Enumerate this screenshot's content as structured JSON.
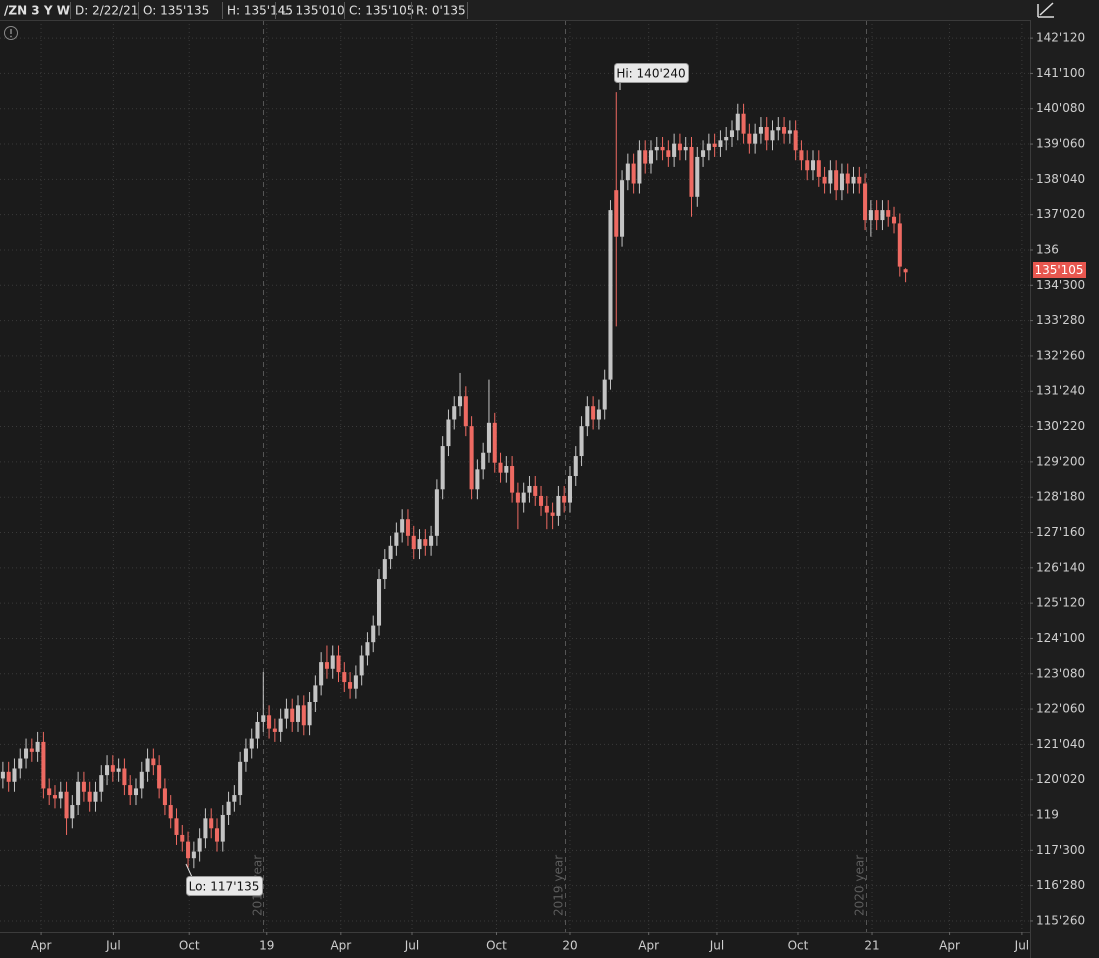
{
  "chart_data": {
    "type": "candlestick",
    "header": {
      "symbol": "/ZN 3 Y W",
      "date": "D: 2/22/21",
      "open": "O: 135'135",
      "high": "H: 135'145",
      "low": "L: 135'010",
      "close": "C: 135'105",
      "range": "R: 0'135"
    },
    "annotations": {
      "hi": "Hi: 140'240",
      "lo": "Lo: 117'135",
      "last": "135'105",
      "year_2018": "2018 year",
      "year_2019": "2019 year",
      "year_2020": "2020 year"
    },
    "up_color": "#c4c4c4",
    "down_color": "#ee6a62",
    "grid": true,
    "categories": [
      null,
      null,
      null,
      null,
      null,
      null,
      null,
      null,
      null,
      null,
      null,
      null,
      null,
      null,
      null,
      null,
      null,
      null,
      null,
      null,
      null,
      null,
      null,
      null,
      null,
      null,
      null,
      null,
      null,
      null,
      null,
      null,
      null,
      null,
      null,
      null,
      null,
      null,
      null,
      null,
      null,
      null,
      null,
      null,
      null,
      null,
      null,
      null,
      null,
      null,
      null,
      null,
      null,
      null,
      null,
      null,
      null,
      null,
      null,
      null,
      null,
      null,
      null,
      null,
      null,
      null,
      null,
      null,
      null,
      null,
      null,
      null,
      null,
      null,
      null,
      null,
      null,
      null,
      null,
      null,
      null,
      null,
      null,
      null,
      null,
      null,
      null,
      null,
      null,
      null,
      null,
      null,
      null,
      null,
      null,
      null,
      null,
      null,
      null,
      null,
      null,
      null,
      null,
      null,
      null,
      null,
      null,
      null,
      null,
      null,
      null,
      null,
      null,
      null,
      null,
      null,
      null,
      null,
      null,
      null,
      null,
      null,
      null,
      null,
      null,
      null,
      null,
      null,
      null,
      null,
      null,
      null,
      null,
      null,
      null,
      null,
      null,
      null,
      null,
      null,
      null,
      null,
      null,
      null,
      null,
      null,
      null,
      null,
      null,
      null,
      null,
      null,
      null,
      null,
      null,
      null,
      null
    ],
    "open": [
      120.1,
      120.3,
      120.0,
      120.4,
      120.7,
      121.0,
      120.9,
      121.2,
      119.8,
      119.6,
      119.5,
      119.7,
      118.9,
      119.3,
      120.0,
      119.7,
      119.4,
      119.7,
      120.2,
      120.5,
      120.3,
      120.4,
      119.9,
      119.6,
      119.8,
      120.3,
      120.7,
      120.5,
      119.8,
      119.3,
      118.9,
      118.4,
      118.2,
      117.7,
      117.9,
      118.3,
      118.9,
      118.6,
      118.2,
      119.0,
      119.4,
      119.6,
      120.6,
      121.0,
      121.3,
      121.8,
      122.0,
      121.6,
      121.5,
      121.9,
      122.2,
      121.8,
      122.3,
      121.7,
      122.4,
      122.9,
      123.6,
      123.4,
      123.8,
      123.3,
      123.0,
      122.8,
      123.2,
      123.8,
      124.2,
      124.7,
      126.1,
      126.7,
      127.1,
      127.5,
      127.9,
      127.4,
      127.0,
      127.3,
      127.1,
      127.4,
      128.8,
      130.1,
      130.9,
      131.3,
      131.6,
      130.7,
      128.8,
      129.4,
      129.9,
      130.8,
      129.6,
      129.3,
      129.5,
      128.7,
      128.4,
      128.7,
      128.9,
      128.6,
      128.3,
      128.1,
      128.0,
      128.6,
      128.4,
      129.2,
      129.8,
      130.7,
      131.3,
      130.9,
      131.2,
      132.1,
      137.8,
      136.4,
      138.1,
      138.6,
      138.0,
      139.0,
      138.6,
      139.0,
      139.1,
      139.0,
      138.8,
      139.2,
      139.0,
      139.1,
      137.6,
      138.8,
      139.0,
      139.2,
      139.1,
      139.3,
      139.4,
      139.6,
      140.1,
      139.5,
      139.2,
      139.5,
      139.7,
      139.3,
      139.6,
      139.7,
      139.5,
      139.6,
      139.0,
      138.7,
      138.4,
      138.7,
      138.2,
      138.0,
      138.4,
      137.8,
      138.3,
      138.0,
      138.2,
      138.0,
      136.9,
      137.2,
      136.9,
      137.2,
      137.0,
      136.8,
      135.422
    ],
    "high": [
      120.6,
      120.6,
      120.7,
      121.0,
      121.3,
      121.3,
      121.5,
      121.5,
      120.1,
      119.9,
      120.0,
      120.0,
      119.6,
      120.3,
      120.3,
      120.0,
      120.0,
      120.5,
      120.8,
      120.8,
      120.7,
      120.7,
      120.2,
      120.1,
      120.6,
      121.0,
      121.0,
      120.8,
      120.1,
      119.6,
      119.2,
      118.7,
      118.5,
      118.2,
      118.6,
      119.2,
      119.2,
      118.9,
      119.3,
      119.7,
      119.9,
      120.9,
      121.3,
      121.6,
      122.1,
      123.3,
      122.3,
      121.9,
      122.2,
      122.5,
      122.5,
      122.6,
      122.6,
      122.7,
      123.2,
      123.9,
      124.1,
      124.1,
      124.1,
      123.6,
      123.3,
      123.5,
      124.1,
      124.5,
      125.0,
      126.4,
      127.0,
      127.4,
      127.8,
      128.2,
      128.2,
      127.7,
      127.6,
      127.6,
      127.7,
      129.1,
      130.4,
      131.2,
      131.6,
      132.3,
      131.9,
      131.0,
      129.7,
      130.2,
      132.1,
      131.1,
      129.9,
      129.8,
      129.8,
      129.0,
      129.0,
      129.2,
      129.2,
      128.9,
      128.6,
      128.4,
      128.9,
      128.9,
      129.5,
      130.1,
      131.0,
      131.6,
      131.6,
      131.5,
      132.4,
      137.5,
      140.75,
      138.4,
      138.9,
      138.9,
      139.3,
      139.3,
      139.3,
      139.4,
      139.4,
      139.3,
      139.5,
      139.5,
      139.4,
      139.4,
      139.1,
      139.3,
      139.5,
      139.5,
      139.6,
      139.7,
      139.9,
      140.4,
      140.4,
      139.8,
      139.8,
      140.0,
      140.0,
      139.9,
      140.0,
      140.0,
      139.9,
      139.9,
      139.3,
      139.0,
      139.0,
      139.0,
      138.5,
      138.7,
      138.7,
      138.6,
      138.6,
      138.5,
      138.5,
      138.3,
      137.5,
      137.5,
      137.5,
      137.5,
      137.3,
      137.1,
      135.453
    ],
    "low": [
      119.8,
      119.7,
      119.7,
      120.1,
      120.4,
      120.6,
      120.6,
      119.5,
      119.3,
      119.2,
      119.2,
      118.4,
      118.6,
      119.0,
      119.4,
      119.1,
      119.1,
      119.4,
      119.9,
      120.0,
      120.0,
      119.6,
      119.3,
      119.3,
      119.5,
      120.0,
      120.2,
      119.5,
      119.0,
      118.6,
      118.1,
      117.9,
      117.42,
      117.4,
      117.6,
      118.0,
      118.3,
      117.9,
      117.9,
      118.7,
      119.1,
      119.3,
      120.3,
      120.7,
      121.0,
      121.5,
      121.3,
      121.2,
      121.2,
      121.6,
      121.5,
      121.5,
      121.4,
      121.4,
      122.1,
      122.6,
      123.1,
      123.1,
      123.0,
      122.7,
      122.5,
      122.5,
      122.9,
      123.5,
      123.9,
      124.4,
      125.8,
      126.4,
      126.8,
      127.2,
      127.1,
      126.7,
      126.7,
      126.8,
      126.8,
      127.1,
      128.5,
      129.8,
      130.6,
      131.0,
      130.4,
      128.5,
      128.5,
      129.1,
      129.6,
      129.3,
      129.0,
      129.0,
      128.4,
      127.6,
      128.1,
      128.4,
      128.3,
      128.0,
      127.6,
      127.6,
      127.7,
      128.1,
      128.1,
      128.9,
      129.5,
      130.4,
      130.6,
      130.6,
      130.9,
      131.8,
      133.7,
      136.1,
      137.8,
      137.7,
      137.7,
      138.3,
      138.3,
      138.7,
      138.7,
      138.5,
      138.5,
      138.7,
      138.7,
      137.0,
      137.3,
      138.5,
      138.7,
      138.8,
      138.8,
      139.0,
      139.1,
      139.3,
      139.2,
      138.9,
      138.9,
      139.2,
      139.0,
      139.0,
      139.3,
      139.2,
      139.2,
      138.7,
      138.4,
      138.1,
      138.1,
      137.9,
      137.7,
      137.7,
      137.5,
      137.5,
      137.7,
      137.7,
      137.7,
      136.6,
      136.4,
      136.6,
      136.6,
      136.7,
      136.5,
      135.2,
      135.031
    ],
    "close": [
      120.3,
      120.0,
      120.4,
      120.7,
      121.0,
      120.9,
      121.2,
      119.8,
      119.6,
      119.5,
      119.7,
      118.9,
      119.3,
      120.0,
      119.7,
      119.4,
      119.7,
      120.2,
      120.5,
      120.3,
      120.4,
      119.9,
      119.6,
      119.8,
      120.3,
      120.7,
      120.5,
      119.8,
      119.3,
      118.9,
      118.4,
      118.2,
      117.7,
      117.9,
      118.3,
      118.9,
      118.6,
      118.2,
      119.0,
      119.4,
      119.6,
      120.6,
      121.0,
      121.3,
      121.8,
      122.0,
      121.6,
      121.5,
      121.9,
      122.2,
      121.8,
      122.3,
      121.7,
      122.4,
      122.9,
      123.6,
      123.4,
      123.8,
      123.3,
      123.0,
      122.8,
      123.2,
      123.8,
      124.2,
      124.7,
      126.1,
      126.7,
      127.1,
      127.5,
      127.9,
      127.4,
      127.0,
      127.3,
      127.1,
      127.4,
      128.8,
      130.1,
      130.9,
      131.3,
      131.6,
      130.7,
      128.8,
      129.4,
      129.9,
      130.8,
      129.6,
      129.3,
      129.5,
      128.7,
      128.4,
      128.7,
      128.9,
      128.6,
      128.3,
      128.1,
      128.0,
      128.6,
      128.4,
      129.2,
      129.8,
      130.7,
      131.3,
      130.9,
      131.2,
      132.1,
      137.2,
      136.4,
      138.1,
      138.6,
      138.0,
      139.0,
      138.6,
      139.0,
      139.1,
      139.0,
      138.8,
      139.2,
      139.0,
      139.1,
      137.6,
      138.8,
      139.0,
      139.2,
      139.1,
      139.3,
      139.4,
      139.6,
      140.1,
      139.5,
      139.2,
      139.5,
      139.7,
      139.3,
      139.6,
      139.7,
      139.5,
      139.6,
      139.0,
      138.7,
      138.4,
      138.7,
      138.2,
      138.0,
      138.4,
      137.8,
      138.3,
      138.0,
      138.2,
      138.0,
      136.9,
      137.2,
      136.9,
      137.2,
      137.0,
      136.8,
      135.5,
      135.328
    ],
    "xlim": [
      -0.5,
      177.5
    ],
    "xticks": [
      {
        "value": 6.6,
        "label": "Apr"
      },
      {
        "value": 19.1,
        "label": "Jul"
      },
      {
        "value": 32.2,
        "label": "Oct"
      },
      {
        "value": 45.6,
        "label": "19"
      },
      {
        "value": 58.4,
        "label": "Apr"
      },
      {
        "value": 70.7,
        "label": "Jul"
      },
      {
        "value": 85.3,
        "label": "Oct"
      },
      {
        "value": 98.0,
        "label": "20"
      },
      {
        "value": 111.6,
        "label": "Apr"
      },
      {
        "value": 123.4,
        "label": "Jul"
      },
      {
        "value": 137.4,
        "label": "Oct"
      },
      {
        "value": 150.2,
        "label": "21"
      },
      {
        "value": 163.6,
        "label": "Apr"
      },
      {
        "value": 176.1,
        "label": "Jul"
      }
    ],
    "ylim": [
      115.48,
      142.92
    ],
    "yticks": [
      {
        "value": 142.375,
        "label": "142'120"
      },
      {
        "value": 141.3125,
        "label": "141'100"
      },
      {
        "value": 140.25,
        "label": "140'080"
      },
      {
        "value": 139.1875,
        "label": "139'060"
      },
      {
        "value": 138.125,
        "label": "138'040"
      },
      {
        "value": 137.0625,
        "label": "137'020"
      },
      136,
      {
        "value": 134.9375,
        "label": "134'300"
      },
      {
        "value": 133.875,
        "label": "133'280"
      },
      {
        "value": 132.8125,
        "label": "132'260"
      },
      {
        "value": 131.75,
        "label": "131'240"
      },
      {
        "value": 130.6875,
        "label": "130'220"
      },
      {
        "value": 129.625,
        "label": "129'200"
      },
      {
        "value": 128.5625,
        "label": "128'180"
      },
      {
        "value": 127.5,
        "label": "127'160"
      },
      {
        "value": 126.4375,
        "label": "126'140"
      },
      {
        "value": 125.375,
        "label": "125'120"
      },
      {
        "value": 124.3125,
        "label": "124'100"
      },
      {
        "value": 123.25,
        "label": "123'080"
      },
      {
        "value": 122.1875,
        "label": "122'060"
      },
      {
        "value": 121.125,
        "label": "121'040"
      },
      {
        "value": 120.0625,
        "label": "120'020"
      },
      119,
      {
        "value": 117.9375,
        "label": "117'300"
      },
      {
        "value": 116.875,
        "label": "116'280"
      },
      {
        "value": 115.8125,
        "label": "115'260"
      }
    ]
  }
}
